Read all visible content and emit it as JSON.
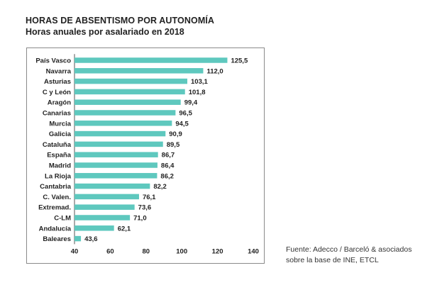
{
  "header": {
    "title": "HORAS DE ABSENTISMO POR AUTONOMÍA",
    "subtitle": "Horas anuales por asalariado en 2018"
  },
  "source": {
    "line1": "Fuente: Adecco / Barceló & asociados",
    "line2": "sobre la base de INE, ETCL"
  },
  "colors": {
    "bar": "#5ec8be",
    "axis": "#555555",
    "frame": "#8a8a8a"
  },
  "chart_data": {
    "type": "bar",
    "orientation": "horizontal",
    "title": "HORAS DE ABSENTISMO POR AUTONOMÍA",
    "subtitle": "Horas anuales por asalariado en 2018",
    "categories": [
      "País Vasco",
      "Navarra",
      "Asturias",
      "C y León",
      "Aragón",
      "Canarias",
      "Murcia",
      "Galicia",
      "Cataluña",
      "España",
      "Madrid",
      "La Rioja",
      "Cantabria",
      "C. Valen.",
      "Extremad.",
      "C-LM",
      "Andalucía",
      "Baleares"
    ],
    "values": [
      125.5,
      112.0,
      103.1,
      101.8,
      99.4,
      96.5,
      94.5,
      90.9,
      89.5,
      86.7,
      86.4,
      86.2,
      82.2,
      76.1,
      73.6,
      71.0,
      62.1,
      43.6
    ],
    "value_labels": [
      "125,5",
      "112,0",
      "103,1",
      "101,8",
      "99,4",
      "96,5",
      "94,5",
      "90,9",
      "89,5",
      "86,7",
      "86,4",
      "86,2",
      "82,2",
      "76,1",
      "73,6",
      "71,0",
      "62,1",
      "43,6"
    ],
    "xlim": [
      40,
      140
    ],
    "xticks": [
      40,
      60,
      80,
      100,
      120,
      140
    ],
    "grid": false,
    "legend": "none"
  }
}
